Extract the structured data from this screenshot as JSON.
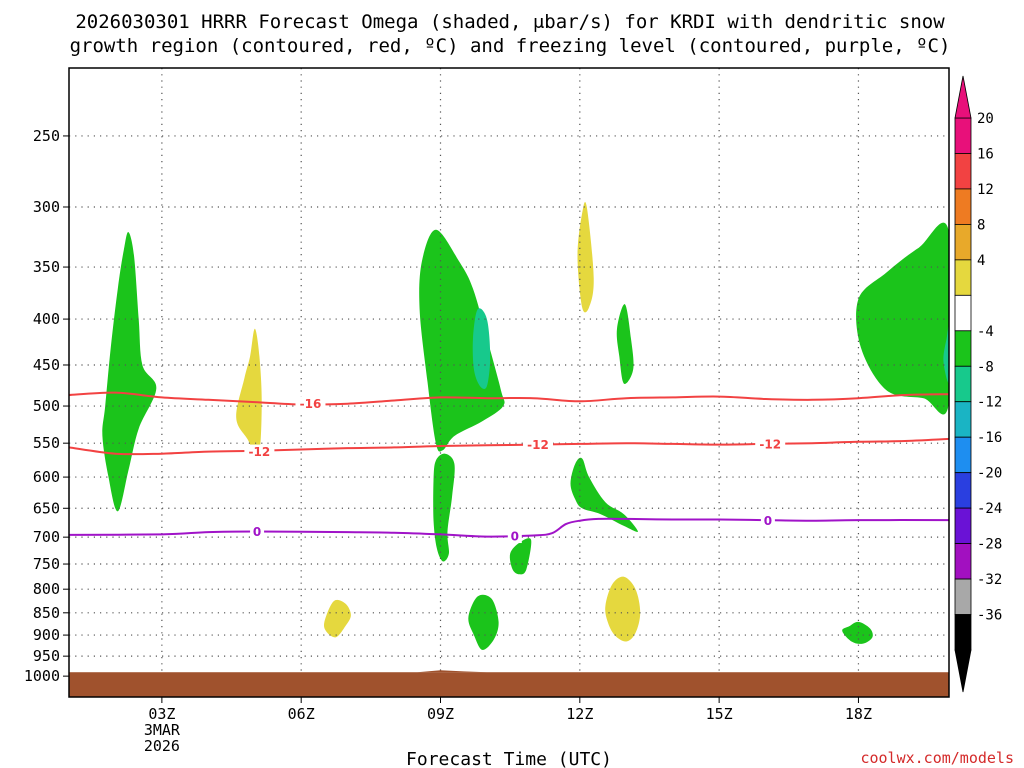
{
  "chart_data": {
    "type": "contour",
    "title_line1": "2026030301 HRRR Forecast Omega (shaded, μbar/s) for KRDI with dendritic snow",
    "title_line2": "growth region (contoured, red, ºC) and freezing level (contoured, purple, ºC)",
    "xlabel": "Forecast Time (UTC)",
    "ylabel": "",
    "credit": "coolwx.com/models",
    "x_range_hours": [
      0.0,
      18.95
    ],
    "y_axis": {
      "type": "log-pressure",
      "range_mb": [
        210,
        1055
      ],
      "ticks": [
        250,
        300,
        350,
        400,
        450,
        500,
        550,
        600,
        650,
        700,
        750,
        800,
        850,
        900,
        950,
        1000
      ]
    },
    "x_ticks": [
      {
        "hour": 2,
        "label": "03Z",
        "sub1": "3MAR",
        "sub2": "2026"
      },
      {
        "hour": 5,
        "label": "06Z",
        "sub1": "",
        "sub2": ""
      },
      {
        "hour": 8,
        "label": "09Z",
        "sub1": "",
        "sub2": ""
      },
      {
        "hour": 11,
        "label": "12Z",
        "sub1": "",
        "sub2": ""
      },
      {
        "hour": 14,
        "label": "15Z",
        "sub1": "",
        "sub2": ""
      },
      {
        "hour": 17,
        "label": "18Z",
        "sub1": "",
        "sub2": ""
      }
    ],
    "grid": true,
    "colorbar": {
      "labels": [
        "20",
        "16",
        "12",
        "8",
        "4",
        "-4",
        "-8",
        "-12",
        "-16",
        "-20",
        "-24",
        "-28",
        "-32",
        "-36"
      ],
      "colors": [
        "#e8107a",
        "#f24242",
        "#ee7b22",
        "#e8a92a",
        "#e5d83e",
        "#ffffff",
        "#1bc41b",
        "#17c98c",
        "#1ab4c4",
        "#1e8ef0",
        "#2a3fe0",
        "#6a12d6",
        "#a210c0",
        "#a8a8a8",
        "#000000"
      ],
      "end_arrows": [
        "#e8107a",
        "#000000"
      ]
    },
    "omega_regions": [
      {
        "name": "green-plume-1",
        "color": "#1bc41b",
        "value_range": [
          -8,
          -4
        ],
        "points": [
          [
            0.78,
            500
          ],
          [
            0.9,
            430
          ],
          [
            1.05,
            370
          ],
          [
            1.18,
            335
          ],
          [
            1.28,
            320
          ],
          [
            1.4,
            340
          ],
          [
            1.5,
            400
          ],
          [
            1.58,
            450
          ],
          [
            1.88,
            478
          ],
          [
            1.5,
            530
          ],
          [
            1.28,
            590
          ],
          [
            1.05,
            655
          ],
          [
            0.85,
            600
          ],
          [
            0.72,
            540
          ]
        ]
      },
      {
        "name": "yellow-plume-1",
        "color": "#e5d83e",
        "value_range": [
          4,
          8
        ],
        "points": [
          [
            3.6,
            515
          ],
          [
            3.78,
            465
          ],
          [
            3.9,
            440
          ],
          [
            4.0,
            410
          ],
          [
            4.1,
            440
          ],
          [
            4.15,
            500
          ],
          [
            4.08,
            570
          ],
          [
            3.85,
            545
          ]
        ]
      },
      {
        "name": "green-plume-2",
        "color": "#1bc41b",
        "value_range": [
          -8,
          -4
        ],
        "points": [
          [
            7.9,
            550
          ],
          [
            7.72,
            470
          ],
          [
            7.55,
            390
          ],
          [
            7.6,
            345
          ],
          [
            7.9,
            318
          ],
          [
            8.4,
            345
          ],
          [
            8.7,
            370
          ],
          [
            9.0,
            420
          ],
          [
            9.3,
            480
          ],
          [
            9.35,
            500
          ],
          [
            8.9,
            520
          ],
          [
            8.3,
            540
          ],
          [
            8.05,
            560
          ]
        ]
      },
      {
        "name": "teal-core-2",
        "color": "#17c98c",
        "value_range": [
          -12,
          -8
        ],
        "points": [
          [
            8.7,
            420
          ],
          [
            8.8,
            390
          ],
          [
            9.0,
            400
          ],
          [
            9.07,
            440
          ],
          [
            9.0,
            475
          ],
          [
            8.85,
            475
          ],
          [
            8.72,
            455
          ]
        ]
      },
      {
        "name": "yellow-plume-2",
        "color": "#e5d83e",
        "value_range": [
          4,
          8
        ],
        "points": [
          [
            10.95,
            340
          ],
          [
            11.05,
            305
          ],
          [
            11.15,
            300
          ],
          [
            11.3,
            360
          ],
          [
            11.2,
            388
          ],
          [
            11.05,
            388
          ]
        ]
      },
      {
        "name": "green-plume-3",
        "color": "#1bc41b",
        "value_range": [
          -8,
          -4
        ],
        "points": [
          [
            11.85,
            440
          ],
          [
            11.8,
            410
          ],
          [
            11.97,
            385
          ],
          [
            12.1,
            420
          ],
          [
            12.15,
            455
          ],
          [
            11.95,
            472
          ]
        ]
      },
      {
        "name": "green-plume-4",
        "color": "#1bc41b",
        "value_range": [
          -8,
          -4
        ],
        "points": [
          [
            17.0,
            380
          ],
          [
            17.6,
            355
          ],
          [
            18.3,
            333
          ],
          [
            18.95,
            320
          ],
          [
            18.95,
            496
          ],
          [
            18.4,
            490
          ],
          [
            17.6,
            480
          ],
          [
            17.05,
            430
          ]
        ]
      },
      {
        "name": "teal-edge-4",
        "color": "#17c98c",
        "value_range": [
          -12,
          -8
        ],
        "points": [
          [
            18.83,
            445
          ],
          [
            18.9,
            420
          ],
          [
            18.95,
            410
          ],
          [
            18.95,
            470
          ]
        ]
      },
      {
        "name": "green-blob-5",
        "color": "#1bc41b",
        "value_range": [
          -8,
          -4
        ],
        "points": [
          [
            7.85,
            605
          ],
          [
            7.9,
            575
          ],
          [
            8.1,
            565
          ],
          [
            8.3,
            580
          ],
          [
            8.25,
            630
          ],
          [
            8.15,
            690
          ],
          [
            8.18,
            730
          ],
          [
            8.05,
            745
          ],
          [
            7.92,
            720
          ],
          [
            7.85,
            670
          ]
        ]
      },
      {
        "name": "green-blob-6",
        "color": "#1bc41b",
        "value_range": [
          -8,
          -4
        ],
        "points": [
          [
            10.8,
            610
          ],
          [
            10.9,
            580
          ],
          [
            11.05,
            572
          ],
          [
            11.2,
            600
          ],
          [
            11.55,
            640
          ],
          [
            11.95,
            660
          ],
          [
            12.25,
            690
          ],
          [
            11.95,
            680
          ],
          [
            11.45,
            660
          ],
          [
            11.05,
            650
          ],
          [
            10.9,
            635
          ]
        ]
      },
      {
        "name": "green-blob-7",
        "color": "#1bc41b",
        "value_range": [
          -8,
          -4
        ],
        "points": [
          [
            9.5,
            730
          ],
          [
            9.7,
            710
          ],
          [
            9.95,
            705
          ],
          [
            9.85,
            760
          ],
          [
            9.7,
            770
          ],
          [
            9.55,
            760
          ]
        ]
      },
      {
        "name": "yellow-blob-7",
        "color": "#e5d83e",
        "value_range": [
          4,
          8
        ],
        "points": [
          [
            5.5,
            870
          ],
          [
            5.7,
            825
          ],
          [
            5.95,
            830
          ],
          [
            6.07,
            855
          ],
          [
            5.95,
            880
          ],
          [
            5.75,
            905
          ],
          [
            5.55,
            893
          ]
        ]
      },
      {
        "name": "green-blob-8",
        "color": "#1bc41b",
        "value_range": [
          -8,
          -4
        ],
        "points": [
          [
            8.6,
            860
          ],
          [
            8.8,
            815
          ],
          [
            9.1,
            820
          ],
          [
            9.25,
            870
          ],
          [
            9.15,
            910
          ],
          [
            8.9,
            935
          ],
          [
            8.72,
            900
          ]
        ]
      },
      {
        "name": "yellow-blob-8",
        "color": "#e5d83e",
        "value_range": [
          4,
          8
        ],
        "points": [
          [
            11.55,
            835
          ],
          [
            11.7,
            790
          ],
          [
            11.95,
            775
          ],
          [
            12.2,
            800
          ],
          [
            12.3,
            850
          ],
          [
            12.2,
            895
          ],
          [
            12.0,
            915
          ],
          [
            11.75,
            900
          ],
          [
            11.6,
            870
          ]
        ]
      },
      {
        "name": "green-blob-9",
        "color": "#1bc41b",
        "value_range": [
          -8,
          -4
        ],
        "points": [
          [
            16.65,
            890
          ],
          [
            16.8,
            880
          ],
          [
            17.0,
            870
          ],
          [
            17.25,
            885
          ],
          [
            17.3,
            905
          ],
          [
            17.1,
            920
          ],
          [
            16.85,
            915
          ]
        ]
      }
    ],
    "contours": [
      {
        "name": "dgz-minus16",
        "color": "#f24242",
        "label": "-16",
        "label_at": [
          5.2,
          497
        ],
        "points": [
          [
            0,
            486
          ],
          [
            1,
            483
          ],
          [
            2,
            489
          ],
          [
            3,
            492
          ],
          [
            4,
            495
          ],
          [
            5,
            498
          ],
          [
            6,
            497
          ],
          [
            7,
            493
          ],
          [
            8,
            489
          ],
          [
            9,
            490
          ],
          [
            10,
            490
          ],
          [
            11,
            494
          ],
          [
            12,
            490
          ],
          [
            13,
            489
          ],
          [
            14,
            488
          ],
          [
            15,
            491
          ],
          [
            16,
            492
          ],
          [
            17,
            490
          ],
          [
            18,
            486
          ],
          [
            18.95,
            485
          ]
        ]
      },
      {
        "name": "dgz-minus12",
        "color": "#f24242",
        "label": "-12",
        "label_at": [
          4.1,
          560
        ],
        "points": [
          [
            0,
            556
          ],
          [
            1,
            565
          ],
          [
            2,
            565
          ],
          [
            3,
            562
          ],
          [
            4,
            561
          ],
          [
            5,
            559
          ],
          [
            6,
            557
          ],
          [
            7,
            556
          ],
          [
            8,
            554
          ],
          [
            9,
            553
          ],
          [
            10,
            552
          ],
          [
            11,
            551
          ],
          [
            12,
            550
          ],
          [
            13,
            551
          ],
          [
            14,
            552
          ],
          [
            15,
            551
          ],
          [
            16,
            550
          ],
          [
            17,
            548
          ],
          [
            18,
            547
          ],
          [
            18.95,
            544
          ]
        ]
      },
      {
        "name": "freezing-level",
        "color": "#a013c8",
        "label": "0",
        "label_at": [
          4.05,
          690
        ],
        "points": [
          [
            0,
            696
          ],
          [
            2,
            695
          ],
          [
            3,
            691
          ],
          [
            4,
            690
          ],
          [
            6,
            691
          ],
          [
            7,
            692
          ],
          [
            8,
            695
          ],
          [
            9,
            699
          ],
          [
            10,
            697
          ],
          [
            10.4,
            693
          ],
          [
            10.7,
            677
          ],
          [
            11.0,
            671
          ],
          [
            11.4,
            668
          ],
          [
            12,
            668
          ],
          [
            13,
            669
          ],
          [
            14,
            669
          ],
          [
            15,
            670
          ],
          [
            16,
            671
          ],
          [
            17,
            670
          ],
          [
            18.95,
            670
          ]
        ]
      }
    ],
    "contour_labels": [
      {
        "text": "-16",
        "color": "#f24242",
        "x": 5.2,
        "y": 497
      },
      {
        "text": "-12",
        "color": "#f24242",
        "x": 4.1,
        "y": 562
      },
      {
        "text": "-12",
        "color": "#f24242",
        "x": 10.1,
        "y": 552
      },
      {
        "text": "-12",
        "color": "#f24242",
        "x": 15.1,
        "y": 551
      },
      {
        "text": "0",
        "color": "#a013c8",
        "x": 4.05,
        "y": 690
      },
      {
        "text": "0",
        "color": "#a013c8",
        "x": 9.6,
        "y": 698
      },
      {
        "text": "0",
        "color": "#a013c8",
        "x": 15.05,
        "y": 671
      }
    ],
    "terrain": {
      "color": "#a0522d",
      "top_mb": 990,
      "bump": [
        [
          7.5,
          990
        ],
        [
          8.0,
          985
        ],
        [
          8.5,
          988
        ],
        [
          9.0,
          990
        ]
      ]
    }
  }
}
